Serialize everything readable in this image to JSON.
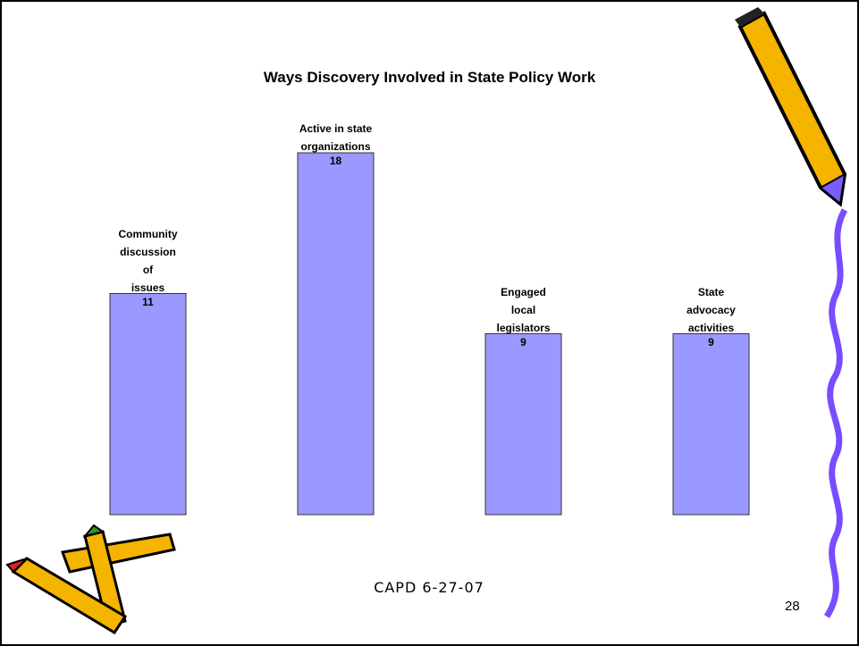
{
  "chart_data": {
    "type": "bar",
    "title": "Ways Discovery Involved in State Policy Work",
    "categories": [
      "Community\ndiscussion\nof\nissues",
      "Active in state\norganizations",
      "Engaged\nlocal\nlegislators",
      "State\nadvocacy\nactivities"
    ],
    "values": [
      11,
      18,
      9,
      9
    ],
    "color": "#9999ff"
  },
  "footer": "CAPD  6-27-07",
  "page_number": "28"
}
